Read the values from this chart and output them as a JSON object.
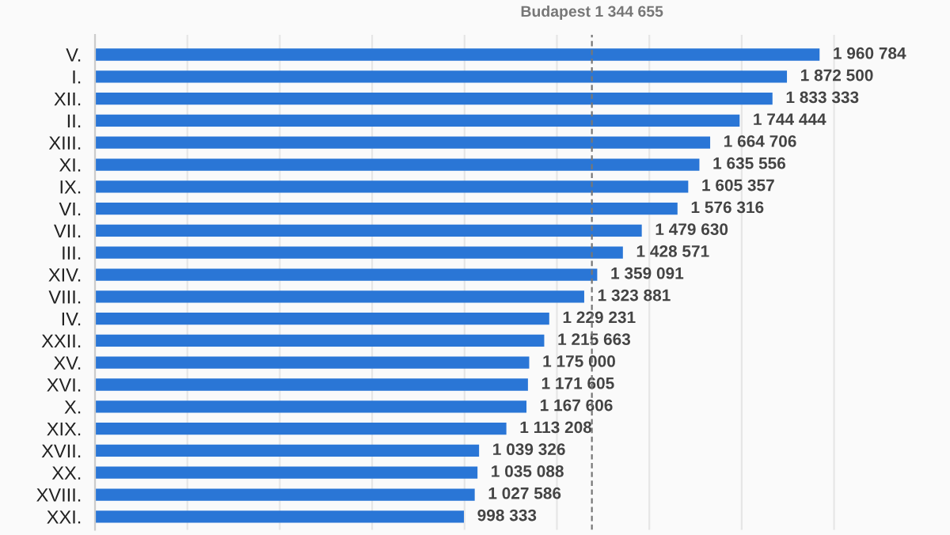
{
  "chart_data": {
    "type": "bar",
    "orientation": "horizontal",
    "categories": [
      "V.",
      "I.",
      "XII.",
      "II.",
      "XIII.",
      "XI.",
      "IX.",
      "VI.",
      "VII.",
      "III.",
      "XIV.",
      "VIII.",
      "IV.",
      "XXII.",
      "XV.",
      "XVI.",
      "X.",
      "XIX.",
      "XVII.",
      "XX.",
      "XVIII.",
      "XXI."
    ],
    "values": [
      1960784,
      1872500,
      1833333,
      1744444,
      1664706,
      1635556,
      1605357,
      1576316,
      1479630,
      1428571,
      1359091,
      1323881,
      1229231,
      1215663,
      1175000,
      1171605,
      1167606,
      1113208,
      1039326,
      1035088,
      1027586,
      998333
    ],
    "color": "#2a76d6",
    "data_labels": true,
    "xticks": [
      {
        "value": 0,
        "label": null
      },
      {
        "value": 250000,
        "label": null
      },
      {
        "value": 500000,
        "label": null
      },
      {
        "value": 750000,
        "label": null
      },
      {
        "value": 1000000,
        "label": null
      },
      {
        "value": 1250000,
        "label": null
      },
      {
        "value": 1500000,
        "label": null
      },
      {
        "value": 1750000,
        "label": null
      },
      {
        "value": 2000000,
        "label": null
      }
    ],
    "grid": "x",
    "ref_lines": [
      {
        "axis": "x",
        "value": 1344655,
        "label": "Budapest 1 344 655",
        "color": "#777777",
        "line_style": "dashed"
      }
    ]
  }
}
